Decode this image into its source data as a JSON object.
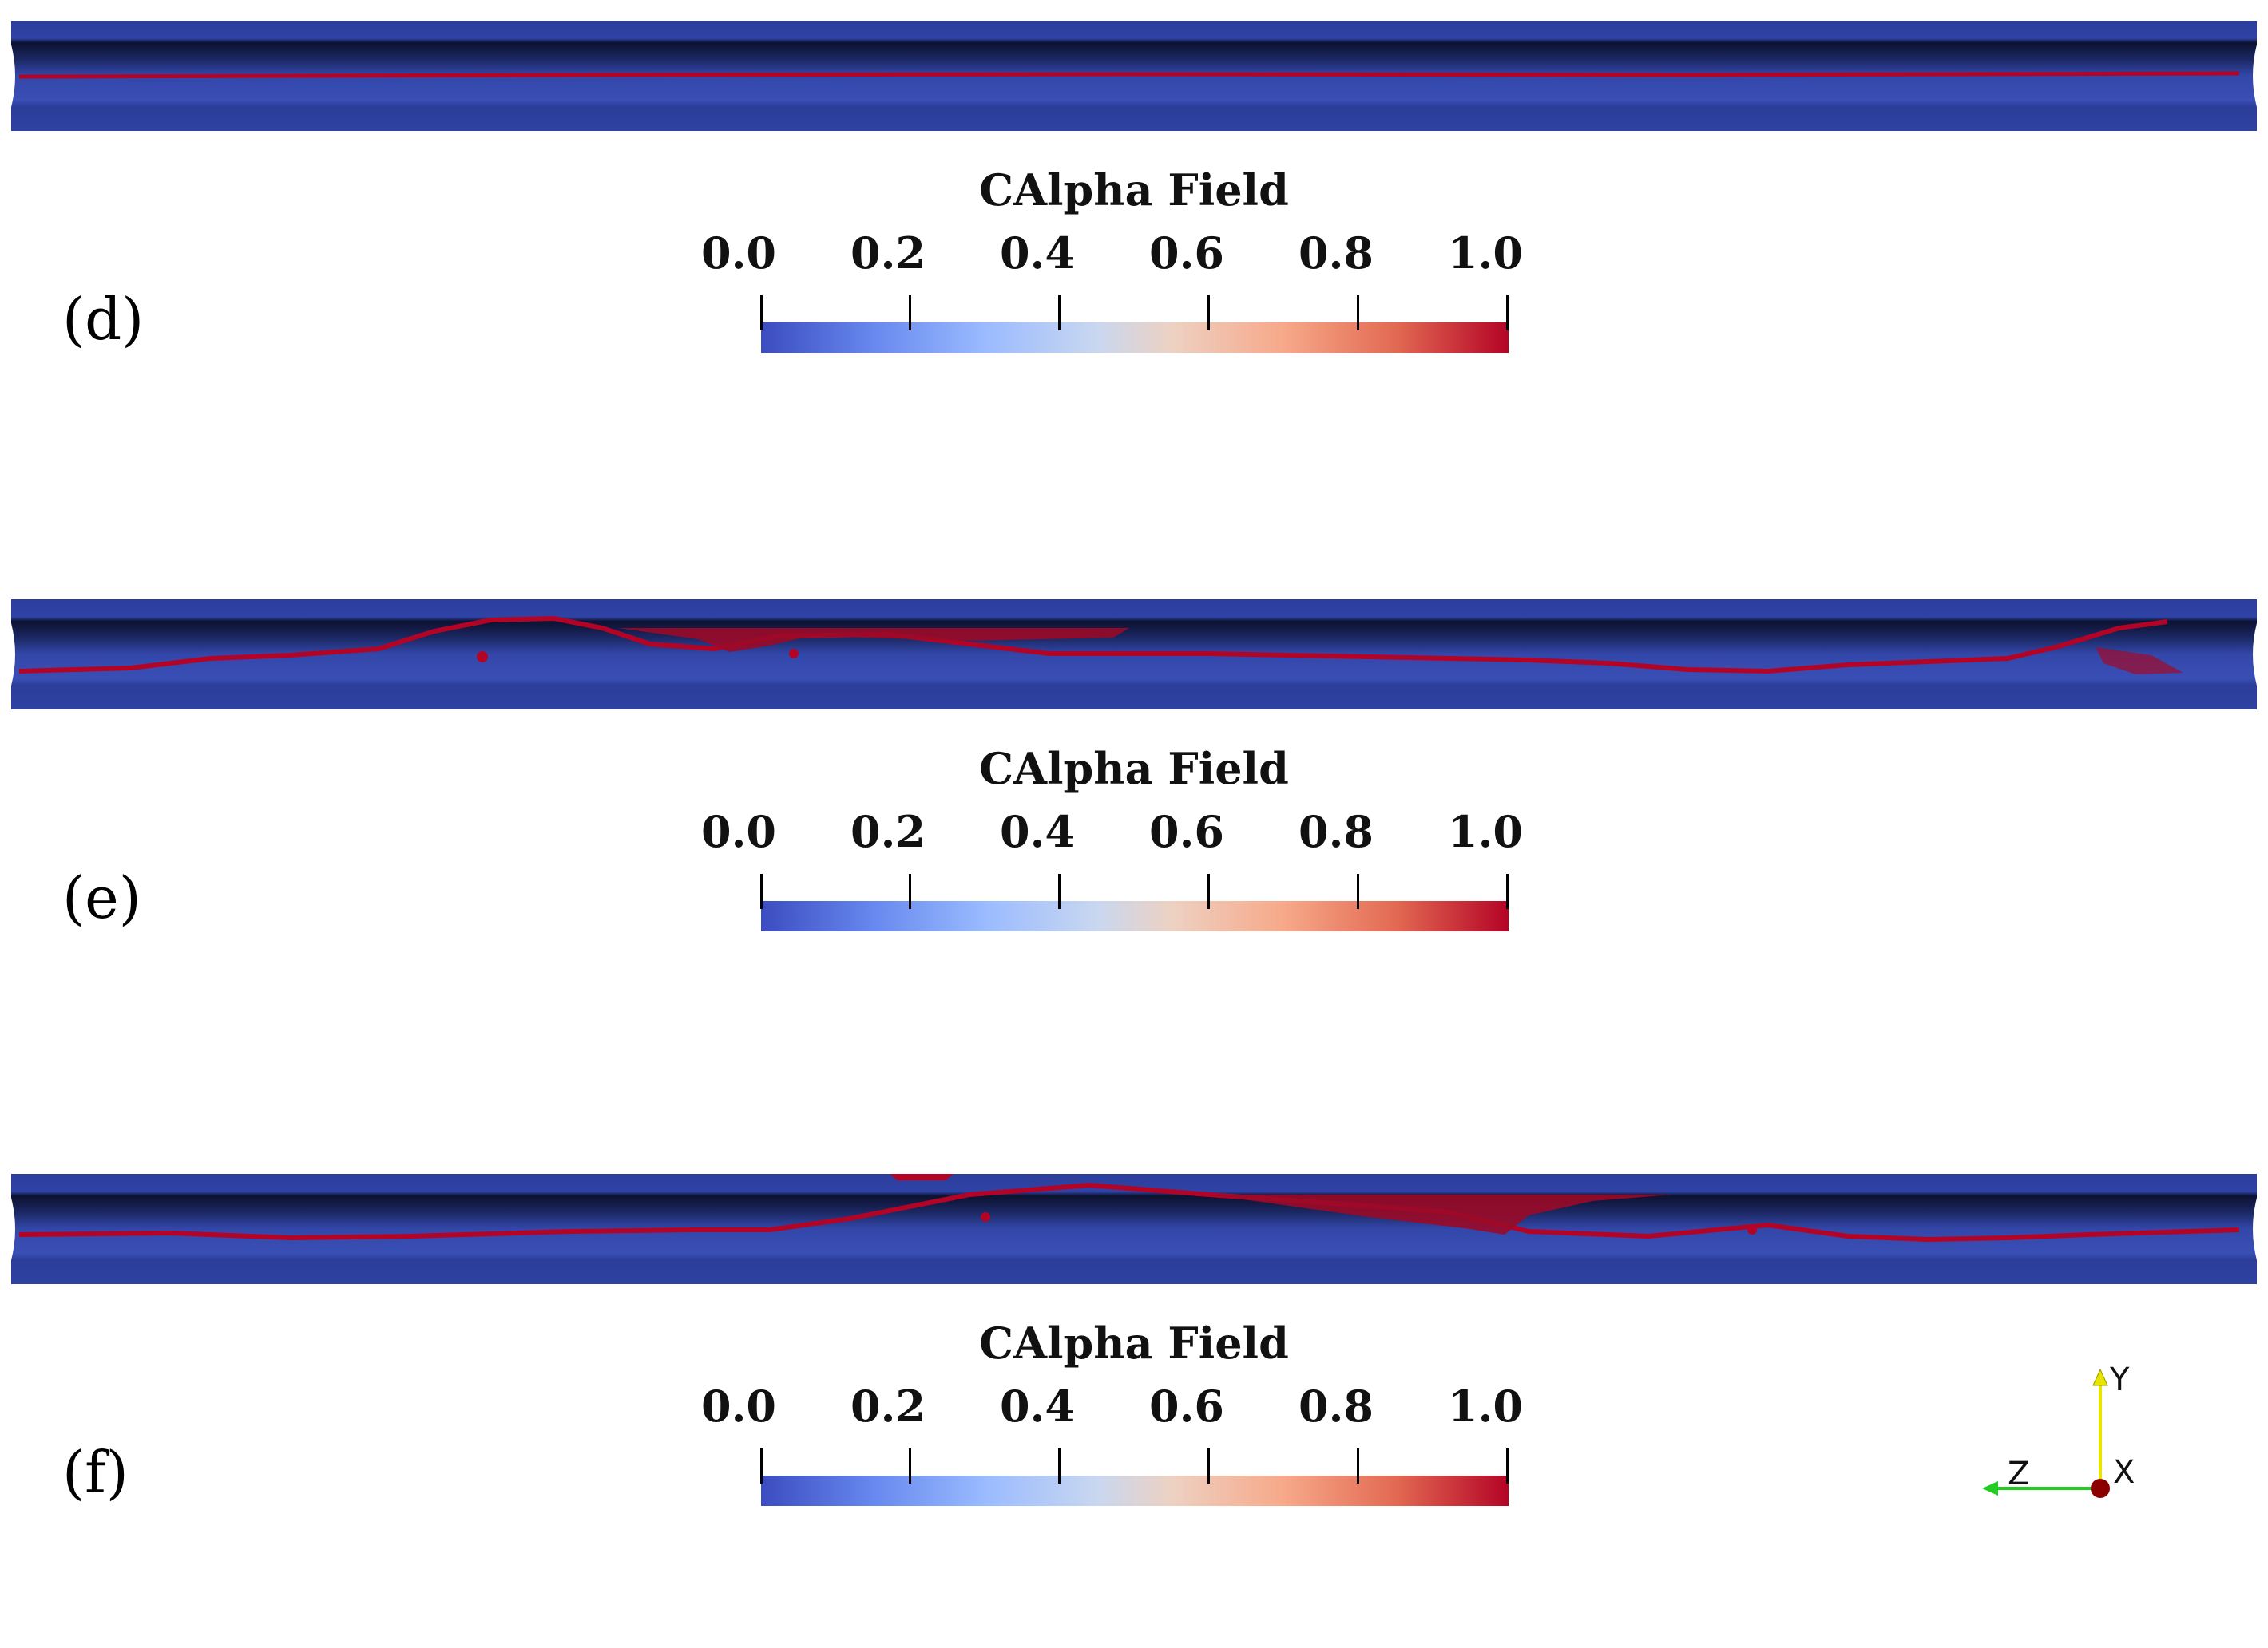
{
  "panels": [
    {
      "label": "(d)",
      "colorbar": {
        "title": "CAlpha Field",
        "ticks": [
          "0.0",
          "0.2",
          "0.4",
          "0.6",
          "0.8",
          "1.0"
        ]
      }
    },
    {
      "label": "(e)",
      "colorbar": {
        "title": "CAlpha Field",
        "ticks": [
          "0.0",
          "0.2",
          "0.4",
          "0.6",
          "0.8",
          "1.0"
        ]
      }
    },
    {
      "label": "(f)",
      "colorbar": {
        "title": "CAlpha Field",
        "ticks": [
          "0.0",
          "0.2",
          "0.4",
          "0.6",
          "0.8",
          "1.0"
        ]
      }
    }
  ],
  "axes": {
    "y": "Y",
    "z": "Z",
    "x": "X"
  },
  "colors": {
    "pipe": "#3b4cc0",
    "interface": "#b40426",
    "y_axis": "#e6e600",
    "z_axis": "#22cc22",
    "x_axis": "#8b0000"
  },
  "colormap": {
    "min": 0.0,
    "max": 1.0,
    "low_color": "#3b4cc0",
    "high_color": "#b40426"
  }
}
